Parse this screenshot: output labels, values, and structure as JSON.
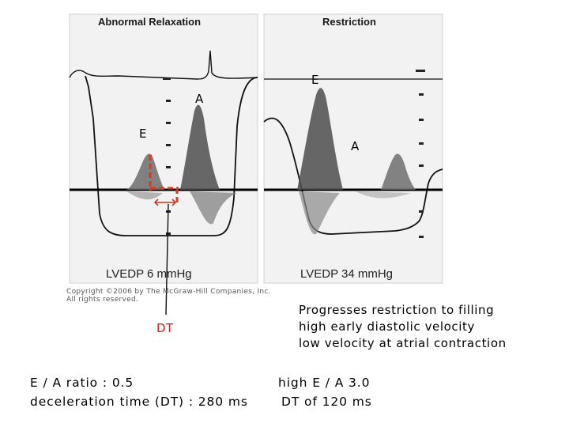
{
  "figure": {
    "left_panel": {
      "title": "Abnormal Relaxation",
      "pressure": "LVEDP 6 mmHg",
      "label_e": "E",
      "label_a": "A",
      "copyright_line1": "Copyright ©2006 by The McGraw-Hill Companies, Inc.",
      "copyright_line2": "All rights reserved."
    },
    "right_panel": {
      "title": "Restriction",
      "pressure": "LVEDP 34 mmHg",
      "label_e": "E",
      "label_a": "A"
    },
    "dt_label": "DT",
    "accent_color": "#d83a22"
  },
  "notes": {
    "restriction_description": [
      "Progresses restriction to filling",
      "high early diastolic velocity",
      "low velocity at atrial contraction"
    ]
  },
  "stats": {
    "abnormal_relaxation": [
      "E / A ratio  : 0.5",
      "deceleration time (DT)  : 280 ms"
    ],
    "restriction": [
      "high  E / A  3.0",
      "DT of 120 ms"
    ]
  }
}
